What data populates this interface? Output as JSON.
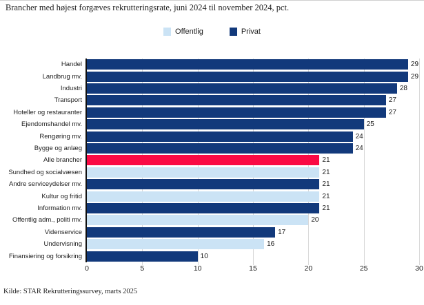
{
  "title": "Brancher med højest forgæves rekrutteringsrate, juni 2024 til november 2024, pct.",
  "source": "Kilde: STAR Rekrutteringssurvey, marts 2025",
  "legend": {
    "items": [
      {
        "label": "Offentlig",
        "group": "offentlig"
      },
      {
        "label": "Privat",
        "group": "privat"
      }
    ]
  },
  "colors": {
    "offentlig": "#cbe3f5",
    "privat": "#12397b",
    "alle": "#fa0a44",
    "gridline": "#d9d9d9",
    "axis": "#111111"
  },
  "chart_data": {
    "type": "bar",
    "orientation": "horizontal",
    "title": "Brancher med højest forgæves rekrutteringsrate, juni 2024 til november 2024, pct.",
    "xlabel": "",
    "ylabel": "",
    "xlim": [
      0,
      30
    ],
    "xticks": [
      0,
      5,
      10,
      15,
      20,
      25,
      30
    ],
    "grid": true,
    "legend_position": "top-center",
    "categories": [
      "Handel",
      "Landbrug mv.",
      "Industri",
      "Transport",
      "Hoteller og restauranter",
      "Ejendomshandel mv.",
      "Rengøring mv.",
      "Bygge og anlæg",
      "Alle brancher",
      "Sundhed og socialvæsen",
      "Andre serviceydelser mv.",
      "Kultur og fritid",
      "Information mv.",
      "Offentlig adm., politi mv.",
      "Videnservice",
      "Undervisning",
      "Finansiering og forsikring"
    ],
    "values": [
      29,
      29,
      28,
      27,
      27,
      25,
      24,
      24,
      21,
      21,
      21,
      21,
      21,
      20,
      17,
      16,
      10
    ],
    "groups": [
      "privat",
      "privat",
      "privat",
      "privat",
      "privat",
      "privat",
      "privat",
      "privat",
      "alle",
      "offentlig",
      "privat",
      "offentlig",
      "privat",
      "offentlig",
      "privat",
      "offentlig",
      "privat"
    ]
  }
}
